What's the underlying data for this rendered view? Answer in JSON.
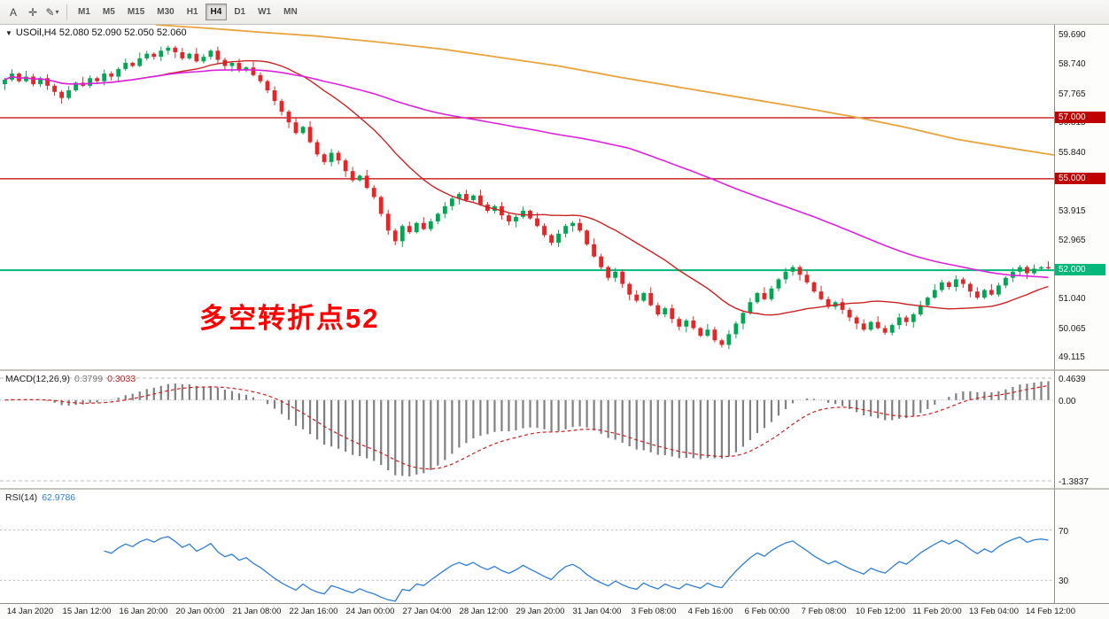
{
  "toolbar": {
    "tools": [
      {
        "name": "text-tool",
        "glyph": "A"
      },
      {
        "name": "crosshair-tool",
        "glyph": "✛"
      },
      {
        "name": "draw-tool",
        "glyph": "✎"
      }
    ],
    "dropdown_arrow": "▾",
    "timeframes": [
      "M1",
      "M5",
      "M15",
      "M30",
      "H1",
      "H4",
      "D1",
      "W1",
      "MN"
    ],
    "active_timeframe": "H4"
  },
  "chart": {
    "collapse_arrow": "▼",
    "title": "USOil,H4 52.080 52.090 52.050 52.060",
    "annotation": "多空转折点52"
  },
  "macd": {
    "label": "MACD(12,26,9)",
    "value_main": "0.3799",
    "value_signal": "0.3033",
    "axis": [
      "0.4639",
      "0.00",
      "-1.3837"
    ]
  },
  "rsi": {
    "label": "RSI(14)",
    "value": "62.9786"
  },
  "chart_data": {
    "type": "candlestick",
    "symbol": "USOil",
    "timeframe": "H4",
    "open_first": 58.1,
    "closes": [
      58.25,
      58.45,
      58.2,
      58.35,
      58.1,
      58.3,
      58.05,
      57.85,
      57.65,
      57.9,
      58.15,
      58.05,
      58.3,
      58.2,
      58.45,
      58.35,
      58.6,
      58.8,
      58.7,
      58.95,
      59.1,
      59.0,
      59.2,
      59.3,
      59.15,
      58.95,
      59.1,
      58.85,
      59.0,
      59.2,
      58.9,
      58.7,
      58.8,
      58.55,
      58.65,
      58.4,
      58.2,
      57.9,
      57.55,
      57.2,
      56.85,
      56.5,
      56.7,
      56.2,
      55.8,
      55.55,
      55.85,
      55.6,
      55.25,
      54.95,
      55.1,
      54.7,
      54.4,
      53.85,
      53.3,
      52.95,
      53.45,
      53.25,
      53.55,
      53.35,
      53.6,
      53.85,
      54.1,
      54.35,
      54.5,
      54.3,
      54.45,
      54.15,
      53.95,
      54.1,
      53.8,
      53.6,
      53.75,
      53.95,
      53.7,
      53.45,
      53.15,
      52.9,
      53.2,
      53.45,
      53.55,
      53.3,
      52.85,
      52.45,
      52.1,
      51.75,
      51.95,
      51.55,
      51.2,
      51.0,
      51.25,
      50.85,
      50.55,
      50.75,
      50.4,
      50.15,
      50.35,
      50.1,
      49.85,
      50.05,
      49.7,
      49.55,
      49.9,
      50.25,
      50.6,
      50.95,
      51.25,
      51.05,
      51.4,
      51.7,
      51.95,
      52.1,
      51.85,
      51.6,
      51.3,
      51.05,
      50.8,
      50.95,
      50.7,
      50.45,
      50.25,
      50.05,
      50.3,
      50.1,
      49.95,
      50.2,
      50.45,
      50.3,
      50.55,
      50.85,
      51.1,
      51.35,
      51.6,
      51.45,
      51.7,
      51.55,
      51.3,
      51.1,
      51.35,
      51.2,
      51.5,
      51.75,
      51.95,
      52.1,
      51.9,
      52.05,
      52.1,
      52.06
    ],
    "ylim": [
      48.75,
      60.05
    ],
    "price_ticks": [
      "59.690",
      "58.740",
      "57.765",
      "56.815",
      "55.840",
      "54.890",
      "53.915",
      "52.965",
      "51.990",
      "51.040",
      "50.065",
      "49.115"
    ],
    "hlines": [
      {
        "price": 57.0,
        "label": "57.000",
        "color": "#c00000"
      },
      {
        "price": 55.0,
        "label": "55.000",
        "color": "#c00000"
      },
      {
        "price": 52.0,
        "label": "52.000",
        "color": "#00b87a"
      }
    ],
    "ma": {
      "fast": {
        "period": 21,
        "color": "#cc2222"
      },
      "slow": {
        "period": 89,
        "color": "#dd22dd"
      },
      "long_waypoints": {
        "color": "#e8a33d",
        "points": [
          [
            0.148,
            60.05
          ],
          [
            0.2,
            59.93
          ],
          [
            0.25,
            59.8
          ],
          [
            0.3,
            59.68
          ],
          [
            0.36,
            59.48
          ],
          [
            0.42,
            59.25
          ],
          [
            0.47,
            59.0
          ],
          [
            0.53,
            58.7
          ],
          [
            0.59,
            58.32
          ],
          [
            0.65,
            57.97
          ],
          [
            0.714,
            57.6
          ],
          [
            0.77,
            57.28
          ],
          [
            0.815,
            57.0
          ],
          [
            0.86,
            56.68
          ],
          [
            0.907,
            56.3
          ],
          [
            0.95,
            56.05
          ],
          [
            1.0,
            55.78
          ]
        ]
      }
    },
    "up_color": "#00a651",
    "down_color": "#e12727",
    "macd_params": [
      12,
      26,
      9
    ],
    "rsi_period": 14,
    "rsi_levels": [
      70,
      30
    ],
    "time_labels": [
      "14 Jan 2020",
      "15 Jan 12:00",
      "16 Jan 20:00",
      "20 Jan 00:00",
      "21 Jan 08:00",
      "22 Jan 16:00",
      "24 Jan 00:00",
      "27 Jan 04:00",
      "28 Jan 12:00",
      "29 Jan 20:00",
      "31 Jan 04:00",
      "3 Feb 08:00",
      "4 Feb 16:00",
      "6 Feb 00:00",
      "7 Feb 08:00",
      "10 Feb 12:00",
      "11 Feb 20:00",
      "13 Feb 04:00",
      "14 Feb 12:00"
    ]
  }
}
